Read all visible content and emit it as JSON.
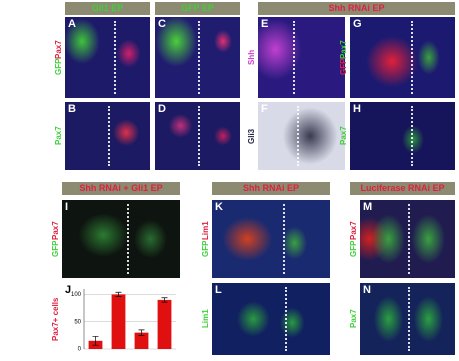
{
  "figure": {
    "headers": [
      "Gli1 EP",
      "GFP EP",
      "Shh RNAi EP",
      "Shh RNAi + Gli1 EP",
      "Shh RNAi EP",
      "Luciferase RNAi EP"
    ],
    "panels": [
      {
        "letter": "A",
        "labels": [
          "GFP",
          "Pax7"
        ]
      },
      {
        "letter": "B",
        "labels": [
          "Pax7"
        ]
      },
      {
        "letter": "C",
        "labels": []
      },
      {
        "letter": "D",
        "labels": []
      },
      {
        "letter": "E",
        "labels": [
          "Shh"
        ]
      },
      {
        "letter": "F",
        "labels": [
          "Gli3"
        ]
      },
      {
        "letter": "G",
        "labels": [
          "GFP",
          "Pax7"
        ]
      },
      {
        "letter": "H",
        "labels": [
          "Pax7"
        ]
      },
      {
        "letter": "I",
        "labels": [
          "GFP",
          "Pax7"
        ]
      },
      {
        "letter": "K",
        "labels": [
          "GFP",
          "Lim1"
        ]
      },
      {
        "letter": "L",
        "labels": [
          "Lim1"
        ]
      },
      {
        "letter": "M",
        "labels": [
          "GFP",
          "Pax7"
        ]
      },
      {
        "letter": "N",
        "labels": [
          "Pax7"
        ]
      }
    ],
    "chart": {
      "type": "bar",
      "letter": "J",
      "axis_label": "Pax7+ cells",
      "values": [
        15,
        100,
        30,
        90
      ],
      "errors": [
        8,
        4,
        5,
        4
      ],
      "color": "#e01010",
      "ylim": [
        0,
        110
      ],
      "yticks": [
        0,
        50,
        100
      ]
    }
  }
}
